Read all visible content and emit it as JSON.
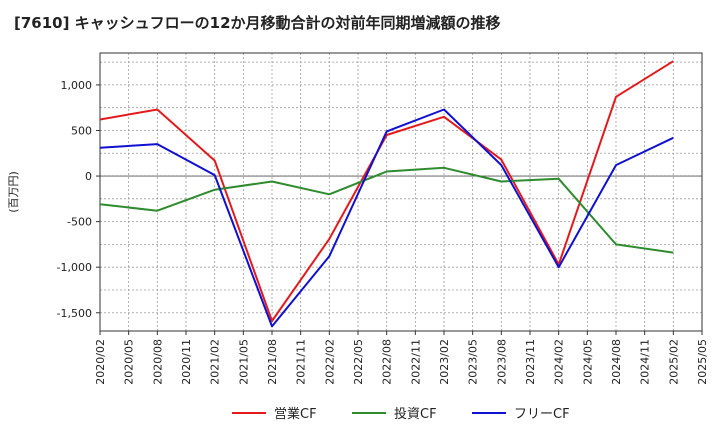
{
  "chart_data": {
    "type": "line",
    "title": "[7610]  キャッシュフローの12か月移動合計の対前年同期増減額の推移",
    "ylabel": "(百万円)",
    "xlabel": "",
    "x_ticks": [
      "2020/02",
      "2020/05",
      "2020/08",
      "2020/11",
      "2021/02",
      "2021/05",
      "2021/08",
      "2021/11",
      "2022/02",
      "2022/05",
      "2022/08",
      "2022/11",
      "2023/02",
      "2023/05",
      "2023/08",
      "2023/11",
      "2024/02",
      "2024/05",
      "2024/08",
      "2024/11",
      "2025/02",
      "2025/05"
    ],
    "y_ticks": [
      1000,
      500,
      0,
      -500,
      -1000,
      -1500
    ],
    "y_tick_labels": [
      "1,000",
      "500",
      "0",
      "-500",
      "-1,000",
      "-1,500"
    ],
    "ylim": [
      -1700,
      1350
    ],
    "grid": true,
    "legend_position": "bottom-center",
    "series": [
      {
        "name": "営業CF",
        "color": "#e31a1c",
        "points": [
          [
            "2020/02",
            620
          ],
          [
            "2020/08",
            730
          ],
          [
            "2021/02",
            170
          ],
          [
            "2021/08",
            -1590
          ],
          [
            "2022/02",
            -690
          ],
          [
            "2022/08",
            450
          ],
          [
            "2023/02",
            650
          ],
          [
            "2023/08",
            180
          ],
          [
            "2024/02",
            -970
          ],
          [
            "2024/08",
            870
          ],
          [
            "2025/02",
            1260
          ]
        ]
      },
      {
        "name": "投資CF",
        "color": "#2e8b2e",
        "points": [
          [
            "2020/02",
            -310
          ],
          [
            "2020/08",
            -380
          ],
          [
            "2021/02",
            -150
          ],
          [
            "2021/08",
            -60
          ],
          [
            "2022/02",
            -200
          ],
          [
            "2022/08",
            50
          ],
          [
            "2023/02",
            90
          ],
          [
            "2023/08",
            -60
          ],
          [
            "2024/02",
            -30
          ],
          [
            "2024/08",
            -750
          ],
          [
            "2025/02",
            -840
          ]
        ]
      },
      {
        "name": "フリーCF",
        "color": "#1010d0",
        "points": [
          [
            "2020/02",
            310
          ],
          [
            "2020/08",
            350
          ],
          [
            "2021/02",
            10
          ],
          [
            "2021/08",
            -1650
          ],
          [
            "2022/02",
            -880
          ],
          [
            "2022/08",
            490
          ],
          [
            "2023/02",
            730
          ],
          [
            "2023/08",
            120
          ],
          [
            "2024/02",
            -1000
          ],
          [
            "2024/08",
            120
          ],
          [
            "2025/02",
            420
          ]
        ]
      }
    ]
  }
}
